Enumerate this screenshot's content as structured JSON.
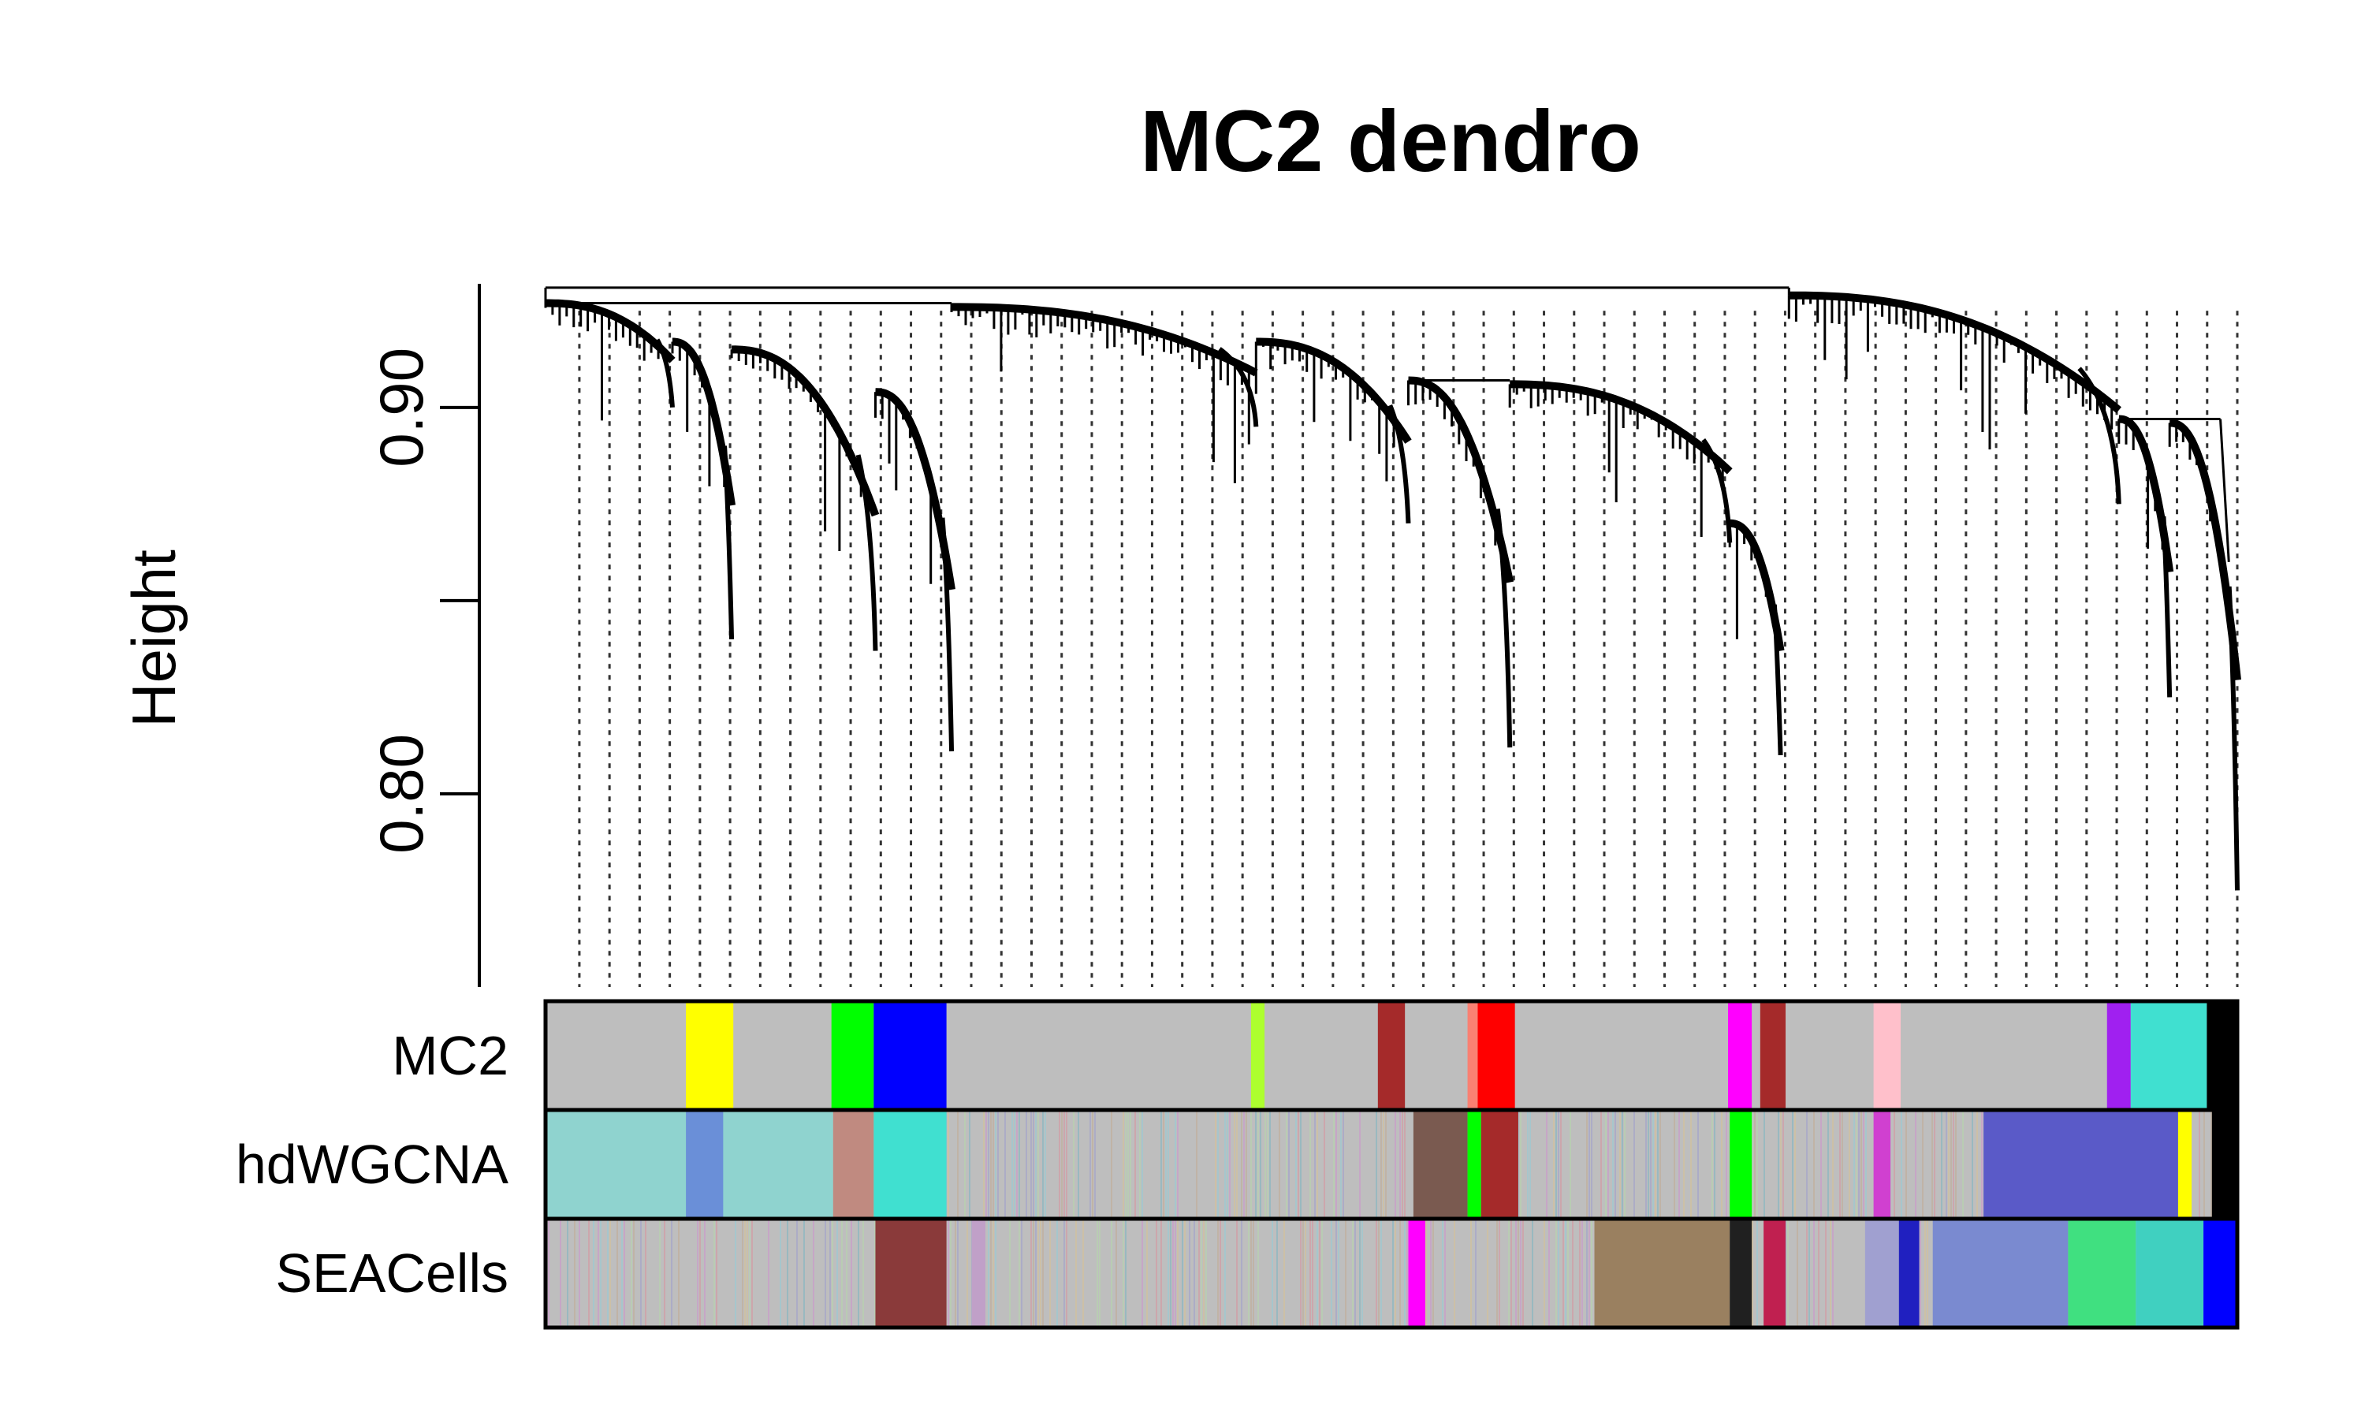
{
  "chart_data": {
    "type": "dendrogram",
    "title": "MC2 dendro",
    "ylabel": "Height",
    "ylim": [
      0.75,
      0.932
    ],
    "yticks": [
      {
        "value": 0.9,
        "label": "0.90"
      },
      {
        "value": 0.85,
        "label": ""
      },
      {
        "value": 0.8,
        "label": "0.80"
      }
    ],
    "dendrogram": {
      "root_height": 0.931,
      "groups": [
        {
          "module": "grey",
          "x": [
            0.0,
            0.075
          ],
          "top": 0.927,
          "bottom": 0.9,
          "color": "#000000"
        },
        {
          "module": "yellow",
          "x": [
            0.075,
            0.11
          ],
          "top": 0.917,
          "bottom": 0.84,
          "color": "#000000"
        },
        {
          "module": "green",
          "x": [
            0.11,
            0.195
          ],
          "top": 0.915,
          "bottom": 0.837,
          "color": "#000000"
        },
        {
          "module": "blue",
          "x": [
            0.195,
            0.24
          ],
          "top": 0.904,
          "bottom": 0.811,
          "color": "#000000"
        },
        {
          "module": "grey",
          "x": [
            0.24,
            0.42
          ],
          "top": 0.926,
          "bottom": 0.895,
          "color": "#000000"
        },
        {
          "module": "brown",
          "x": [
            0.42,
            0.51
          ],
          "top": 0.917,
          "bottom": 0.87,
          "color": "#000000"
        },
        {
          "module": "red",
          "x": [
            0.51,
            0.57
          ],
          "top": 0.907,
          "bottom": 0.812,
          "color": "#000000"
        },
        {
          "module": "grey",
          "x": [
            0.57,
            0.7
          ],
          "top": 0.906,
          "bottom": 0.865,
          "color": "#000000"
        },
        {
          "module": "magenta",
          "x": [
            0.7,
            0.73
          ],
          "top": 0.87,
          "bottom": 0.81,
          "color": "#000000"
        },
        {
          "module": "grey",
          "x": [
            0.735,
            0.93
          ],
          "top": 0.929,
          "bottom": 0.875,
          "color": "#000000"
        },
        {
          "module": "purple",
          "x": [
            0.93,
            0.96
          ],
          "top": 0.897,
          "bottom": 0.825,
          "color": "#000000"
        },
        {
          "module": "turquoise",
          "x": [
            0.96,
            1.0
          ],
          "top": 0.896,
          "bottom": 0.775,
          "color": "#000000"
        }
      ]
    },
    "color_rows": [
      {
        "label": "MC2",
        "base": "#bebebe",
        "blocks": [
          {
            "from": 0.083,
            "to": 0.111,
            "color": "#ffff00"
          },
          {
            "from": 0.169,
            "to": 0.194,
            "color": "#00ff00"
          },
          {
            "from": 0.194,
            "to": 0.237,
            "color": "#0000ff"
          },
          {
            "from": 0.417,
            "to": 0.425,
            "color": "#adff2f"
          },
          {
            "from": 0.492,
            "to": 0.508,
            "color": "#a52a2a"
          },
          {
            "from": 0.545,
            "to": 0.551,
            "color": "#fa8072"
          },
          {
            "from": 0.551,
            "to": 0.573,
            "color": "#ff0000"
          },
          {
            "from": 0.699,
            "to": 0.713,
            "color": "#ff00ff"
          },
          {
            "from": 0.718,
            "to": 0.733,
            "color": "#a52a2a"
          },
          {
            "from": 0.785,
            "to": 0.801,
            "color": "#ffc0cb"
          },
          {
            "from": 0.923,
            "to": 0.937,
            "color": "#a020f0"
          },
          {
            "from": 0.937,
            "to": 0.982,
            "color": "#40e0d0"
          },
          {
            "from": 0.982,
            "to": 1.0,
            "color": "#000000"
          }
        ]
      },
      {
        "label": "hdWGCNA",
        "base": "#bebebe",
        "blocks": [
          {
            "from": 0.0,
            "to": 0.17,
            "color": "#8fd3cf"
          },
          {
            "from": 0.083,
            "to": 0.105,
            "color": "#6a8fd8"
          },
          {
            "from": 0.17,
            "to": 0.194,
            "color": "#c08a80"
          },
          {
            "from": 0.194,
            "to": 0.237,
            "color": "#40e0d0"
          },
          {
            "from": 0.513,
            "to": 0.545,
            "color": "#7a5a50"
          },
          {
            "from": 0.545,
            "to": 0.553,
            "color": "#00ff00"
          },
          {
            "from": 0.553,
            "to": 0.575,
            "color": "#a52a2a"
          },
          {
            "from": 0.7,
            "to": 0.713,
            "color": "#00ff00"
          },
          {
            "from": 0.785,
            "to": 0.795,
            "color": "#d040d0"
          },
          {
            "from": 0.85,
            "to": 0.97,
            "color": "#5a5ac8"
          },
          {
            "from": 0.965,
            "to": 0.973,
            "color": "#ffff00"
          },
          {
            "from": 0.985,
            "to": 1.0,
            "color": "#000000"
          }
        ]
      },
      {
        "label": "SEACells",
        "base": "#bebebe",
        "blocks": [
          {
            "from": 0.195,
            "to": 0.237,
            "color": "#8a3a3a"
          },
          {
            "from": 0.252,
            "to": 0.26,
            "color": "#c0a0c8"
          },
          {
            "from": 0.51,
            "to": 0.52,
            "color": "#ff00ff"
          },
          {
            "from": 0.62,
            "to": 0.7,
            "color": "#9a8060"
          },
          {
            "from": 0.7,
            "to": 0.713,
            "color": "#202020"
          },
          {
            "from": 0.72,
            "to": 0.733,
            "color": "#c02050"
          },
          {
            "from": 0.78,
            "to": 0.8,
            "color": "#a0a0d0"
          },
          {
            "from": 0.8,
            "to": 0.812,
            "color": "#2020c0"
          },
          {
            "from": 0.82,
            "to": 0.9,
            "color": "#7a8ad0"
          },
          {
            "from": 0.9,
            "to": 0.94,
            "color": "#40e080"
          },
          {
            "from": 0.94,
            "to": 0.98,
            "color": "#40d0c0"
          },
          {
            "from": 0.98,
            "to": 1.0,
            "color": "#0000ff"
          }
        ]
      }
    ],
    "colors": {
      "axis": "#000000",
      "tree": "#000000",
      "dotted_guides": "#333333"
    }
  }
}
